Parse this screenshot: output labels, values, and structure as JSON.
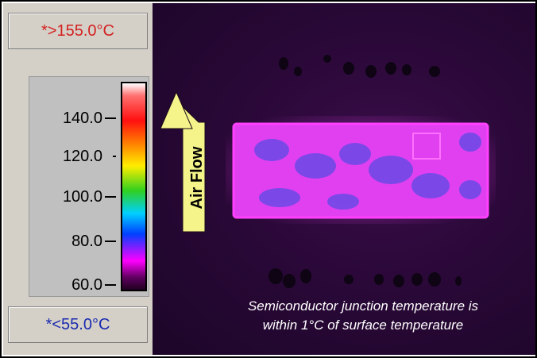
{
  "scale": {
    "max_readout": "*>155.0°C",
    "min_readout": "*<55.0°C",
    "tick_labels": [
      "140.0",
      "120.0",
      "100.0",
      "80.0",
      "60.0"
    ],
    "colorbar_range": [
      55.0,
      155.0
    ]
  },
  "annotation": {
    "arrow_label": "Air Flow",
    "arrow_color": "#f4f48a"
  },
  "caption": {
    "line1": "Semiconductor junction temperature is",
    "line2": "within 1°C of surface temperature"
  },
  "colors": {
    "max_text": "#d42020",
    "min_text": "#1a2ab0",
    "component_glow": "#ff30ff"
  }
}
